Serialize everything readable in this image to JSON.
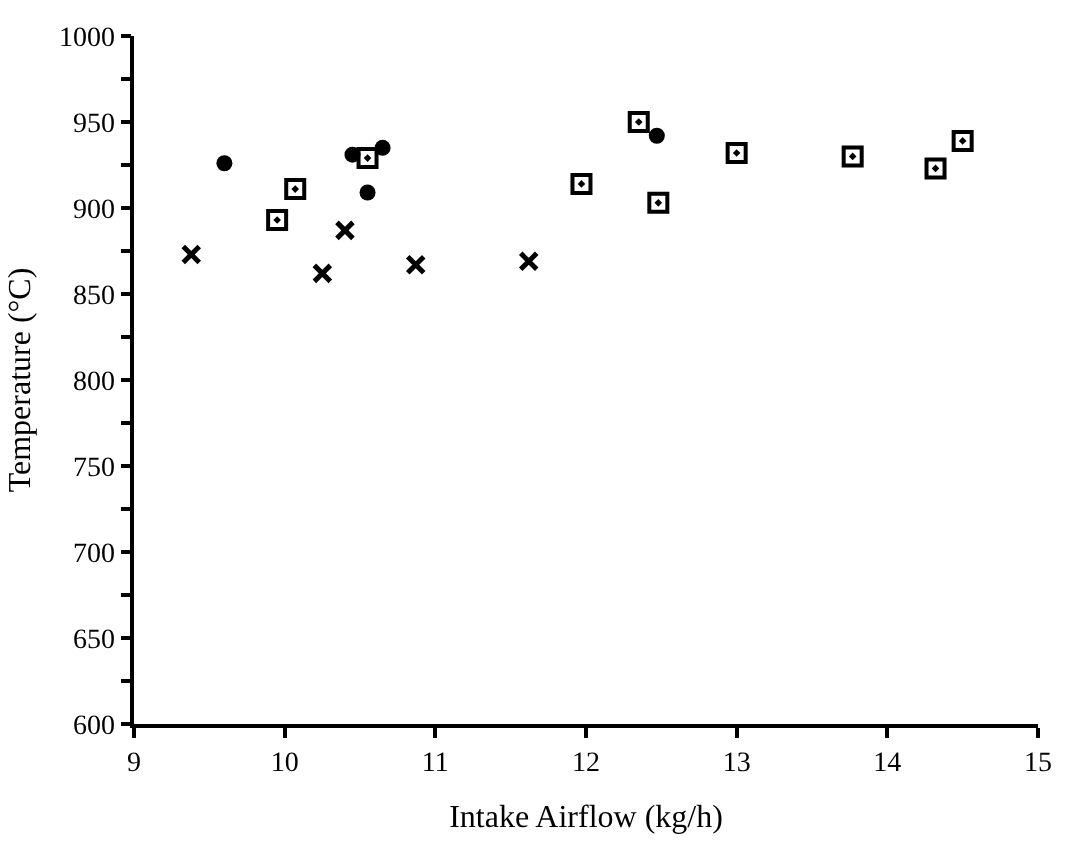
{
  "chart_data": {
    "type": "scatter",
    "xlabel": "Intake Airflow (kg/h)",
    "ylabel": "Temperature (°C)",
    "xlim": [
      9,
      15
    ],
    "xticks": [
      9,
      10,
      11,
      12,
      13,
      14,
      15
    ],
    "ylim": [
      600,
      1000
    ],
    "yticks": [
      600,
      {
        "value": 625,
        "label": null
      },
      650,
      {
        "value": 675,
        "label": null
      },
      700,
      {
        "value": 725,
        "label": null
      },
      750,
      {
        "value": 775,
        "label": null
      },
      800,
      {
        "value": 825,
        "label": null
      },
      850,
      {
        "value": 875,
        "label": null
      },
      900,
      {
        "value": 925,
        "label": null
      },
      950,
      {
        "value": 975,
        "label": null
      },
      1000
    ],
    "series": [
      {
        "color": "#000000",
        "marker": "circle",
        "x": [
          9.6,
          10.45,
          10.55,
          10.65,
          12.47
        ],
        "values": [
          926,
          931,
          909,
          935,
          942
        ]
      },
      {
        "color": "#000000",
        "marker": "square",
        "x": [
          9.95,
          10.07,
          10.55,
          11.97,
          12.35,
          12.48,
          13.0,
          13.77,
          14.32,
          14.5
        ],
        "values": [
          893,
          911,
          929,
          914,
          950,
          903,
          932,
          930,
          923,
          939
        ]
      },
      {
        "color": "#000000",
        "marker": "cross",
        "x": [
          9.38,
          10.25,
          10.4,
          10.87,
          11.62
        ],
        "values": [
          873,
          862,
          887,
          867,
          869
        ]
      }
    ]
  }
}
